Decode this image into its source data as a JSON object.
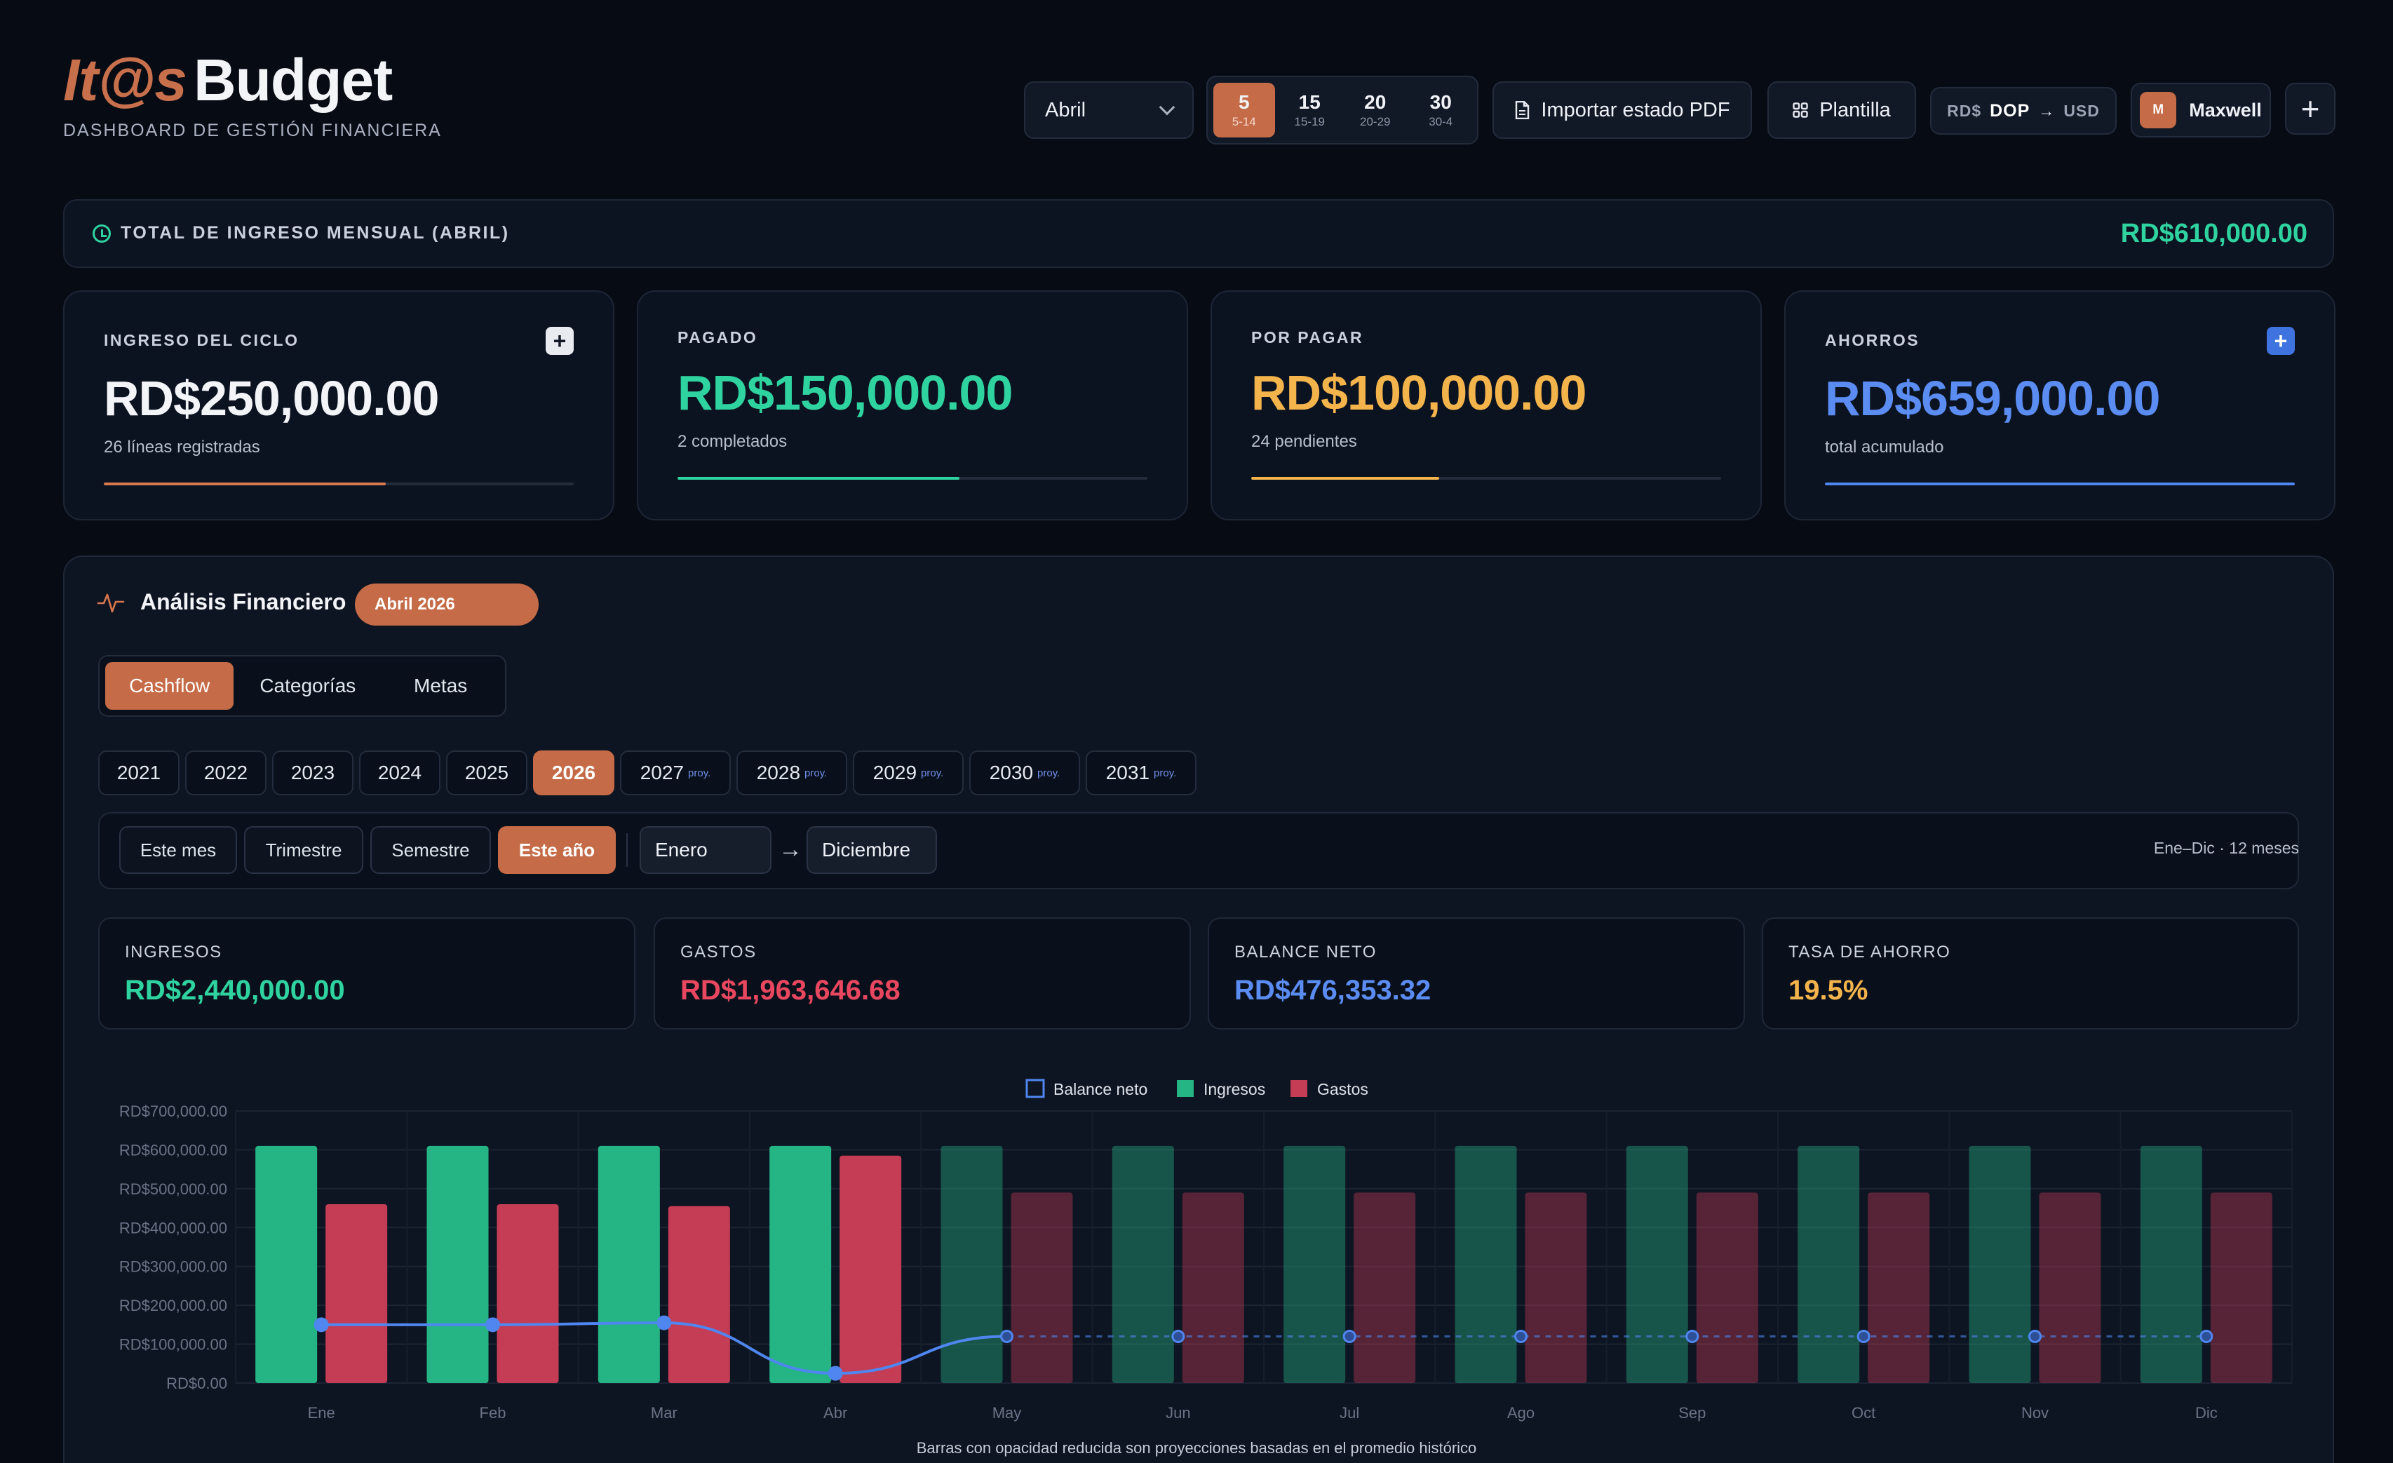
{
  "header": {
    "logo_accent": "It@s",
    "logo_main": "Budget",
    "tagline": "DASHBOARD DE GESTIÓN FINANCIERA",
    "month": "Abril",
    "cycles": [
      {
        "day": "5",
        "range": "5-14",
        "active": true
      },
      {
        "day": "15",
        "range": "15-19",
        "active": false
      },
      {
        "day": "20",
        "range": "20-29",
        "active": false
      },
      {
        "day": "30",
        "range": "30-4",
        "active": false
      }
    ],
    "import_pdf_label": "Importar estado PDF",
    "template_label": "Plantilla",
    "currency": {
      "symbol": "RD$",
      "from": "DOP",
      "arrow": "→",
      "to": "USD"
    },
    "user": {
      "initial": "M",
      "name": "Maxwell"
    },
    "add_label": "+"
  },
  "total_banner": {
    "label": "TOTAL DE INGRESO MENSUAL (ABRIL)",
    "value": "RD$610,000.00"
  },
  "stats": [
    {
      "label": "INGRESO DEL CICLO",
      "value": "RD$250,000.00",
      "sub": "26 líneas registradas",
      "progress": 0.6,
      "color": "#d9774e",
      "value_color": "#f2f4f8",
      "plus": true,
      "plus_style": "light"
    },
    {
      "label": "PAGADO",
      "value": "RD$150,000.00",
      "sub": "2 completados",
      "progress": 0.6,
      "color": "#2fd3a0",
      "value_color": "#2fd3a0",
      "plus": false
    },
    {
      "label": "POR PAGAR",
      "value": "RD$100,000.00",
      "sub": "24 pendientes",
      "progress": 0.4,
      "color": "#f4b44c",
      "value_color": "#f4b44c",
      "plus": false
    },
    {
      "label": "AHORROS",
      "value": "RD$659,000.00",
      "sub": "total acumulado",
      "progress": 1.0,
      "color": "#4f86f0",
      "value_color": "#5a8cf2",
      "plus": true,
      "plus_style": "blue"
    }
  ],
  "analysis": {
    "title": "Análisis Financiero",
    "period": "Abril 2026",
    "tabs": [
      {
        "label": "Cashflow",
        "active": true
      },
      {
        "label": "Categorías",
        "active": false
      },
      {
        "label": "Metas",
        "active": false
      }
    ],
    "years": [
      {
        "label": "2021",
        "proj": ""
      },
      {
        "label": "2022",
        "proj": ""
      },
      {
        "label": "2023",
        "proj": ""
      },
      {
        "label": "2024",
        "proj": ""
      },
      {
        "label": "2025",
        "proj": ""
      },
      {
        "label": "2026",
        "proj": "",
        "active": true
      },
      {
        "label": "2027",
        "proj": "proy."
      },
      {
        "label": "2028",
        "proj": "proy."
      },
      {
        "label": "2029",
        "proj": "proy."
      },
      {
        "label": "2030",
        "proj": "proy."
      },
      {
        "label": "2031",
        "proj": "proy."
      }
    ],
    "filters": [
      {
        "label": "Este mes",
        "active": false
      },
      {
        "label": "Trimestre",
        "active": false
      },
      {
        "label": "Semestre",
        "active": false
      },
      {
        "label": "Este año",
        "active": true
      }
    ],
    "range_from": "Enero",
    "range_arrow": "→",
    "range_to": "Diciembre",
    "range_note": "Ene–Dic · 12 meses",
    "kpis": [
      {
        "label": "INGRESOS",
        "value": "RD$2,440,000.00",
        "color": "#2fd3a0"
      },
      {
        "label": "GASTOS",
        "value": "RD$1,963,646.68",
        "color": "#e8475f"
      },
      {
        "label": "BALANCE NETO",
        "value": "RD$476,353.32",
        "color": "#5a8cf2"
      },
      {
        "label": "TASA DE AHORRO",
        "value": "19.5%",
        "color": "#f4b44c"
      }
    ],
    "footnote": "Barras con opacidad reducida son proyecciones basadas en el promedio histórico"
  },
  "chart_data": {
    "type": "bar",
    "categories": [
      "Ene",
      "Feb",
      "Mar",
      "Abr",
      "May",
      "Jun",
      "Jul",
      "Ago",
      "Sep",
      "Oct",
      "Nov",
      "Dic"
    ],
    "series": [
      {
        "name": "Balance neto",
        "type": "line",
        "color": "#4f86f0",
        "values": [
          150000,
          150000,
          155000,
          25000,
          120000,
          120000,
          120000,
          120000,
          120000,
          120000,
          120000,
          120000
        ]
      },
      {
        "name": "Ingresos",
        "type": "bar",
        "color": "#25b584",
        "values": [
          610000,
          610000,
          610000,
          610000,
          610000,
          610000,
          610000,
          610000,
          610000,
          610000,
          610000,
          610000
        ]
      },
      {
        "name": "Gastos",
        "type": "bar",
        "color": "#c43d55",
        "values": [
          460000,
          460000,
          455000,
          585000,
          490000,
          490000,
          490000,
          490000,
          490000,
          490000,
          490000,
          490000
        ]
      }
    ],
    "projected_from_index": 4,
    "ylim": [
      0,
      700000
    ],
    "yticks": [
      "RD$0.00",
      "RD$100,000.00",
      "RD$200,000.00",
      "RD$300,000.00",
      "RD$400,000.00",
      "RD$500,000.00",
      "RD$600,000.00",
      "RD$700,000.00"
    ],
    "legend_position": "top-center",
    "grid": true
  }
}
